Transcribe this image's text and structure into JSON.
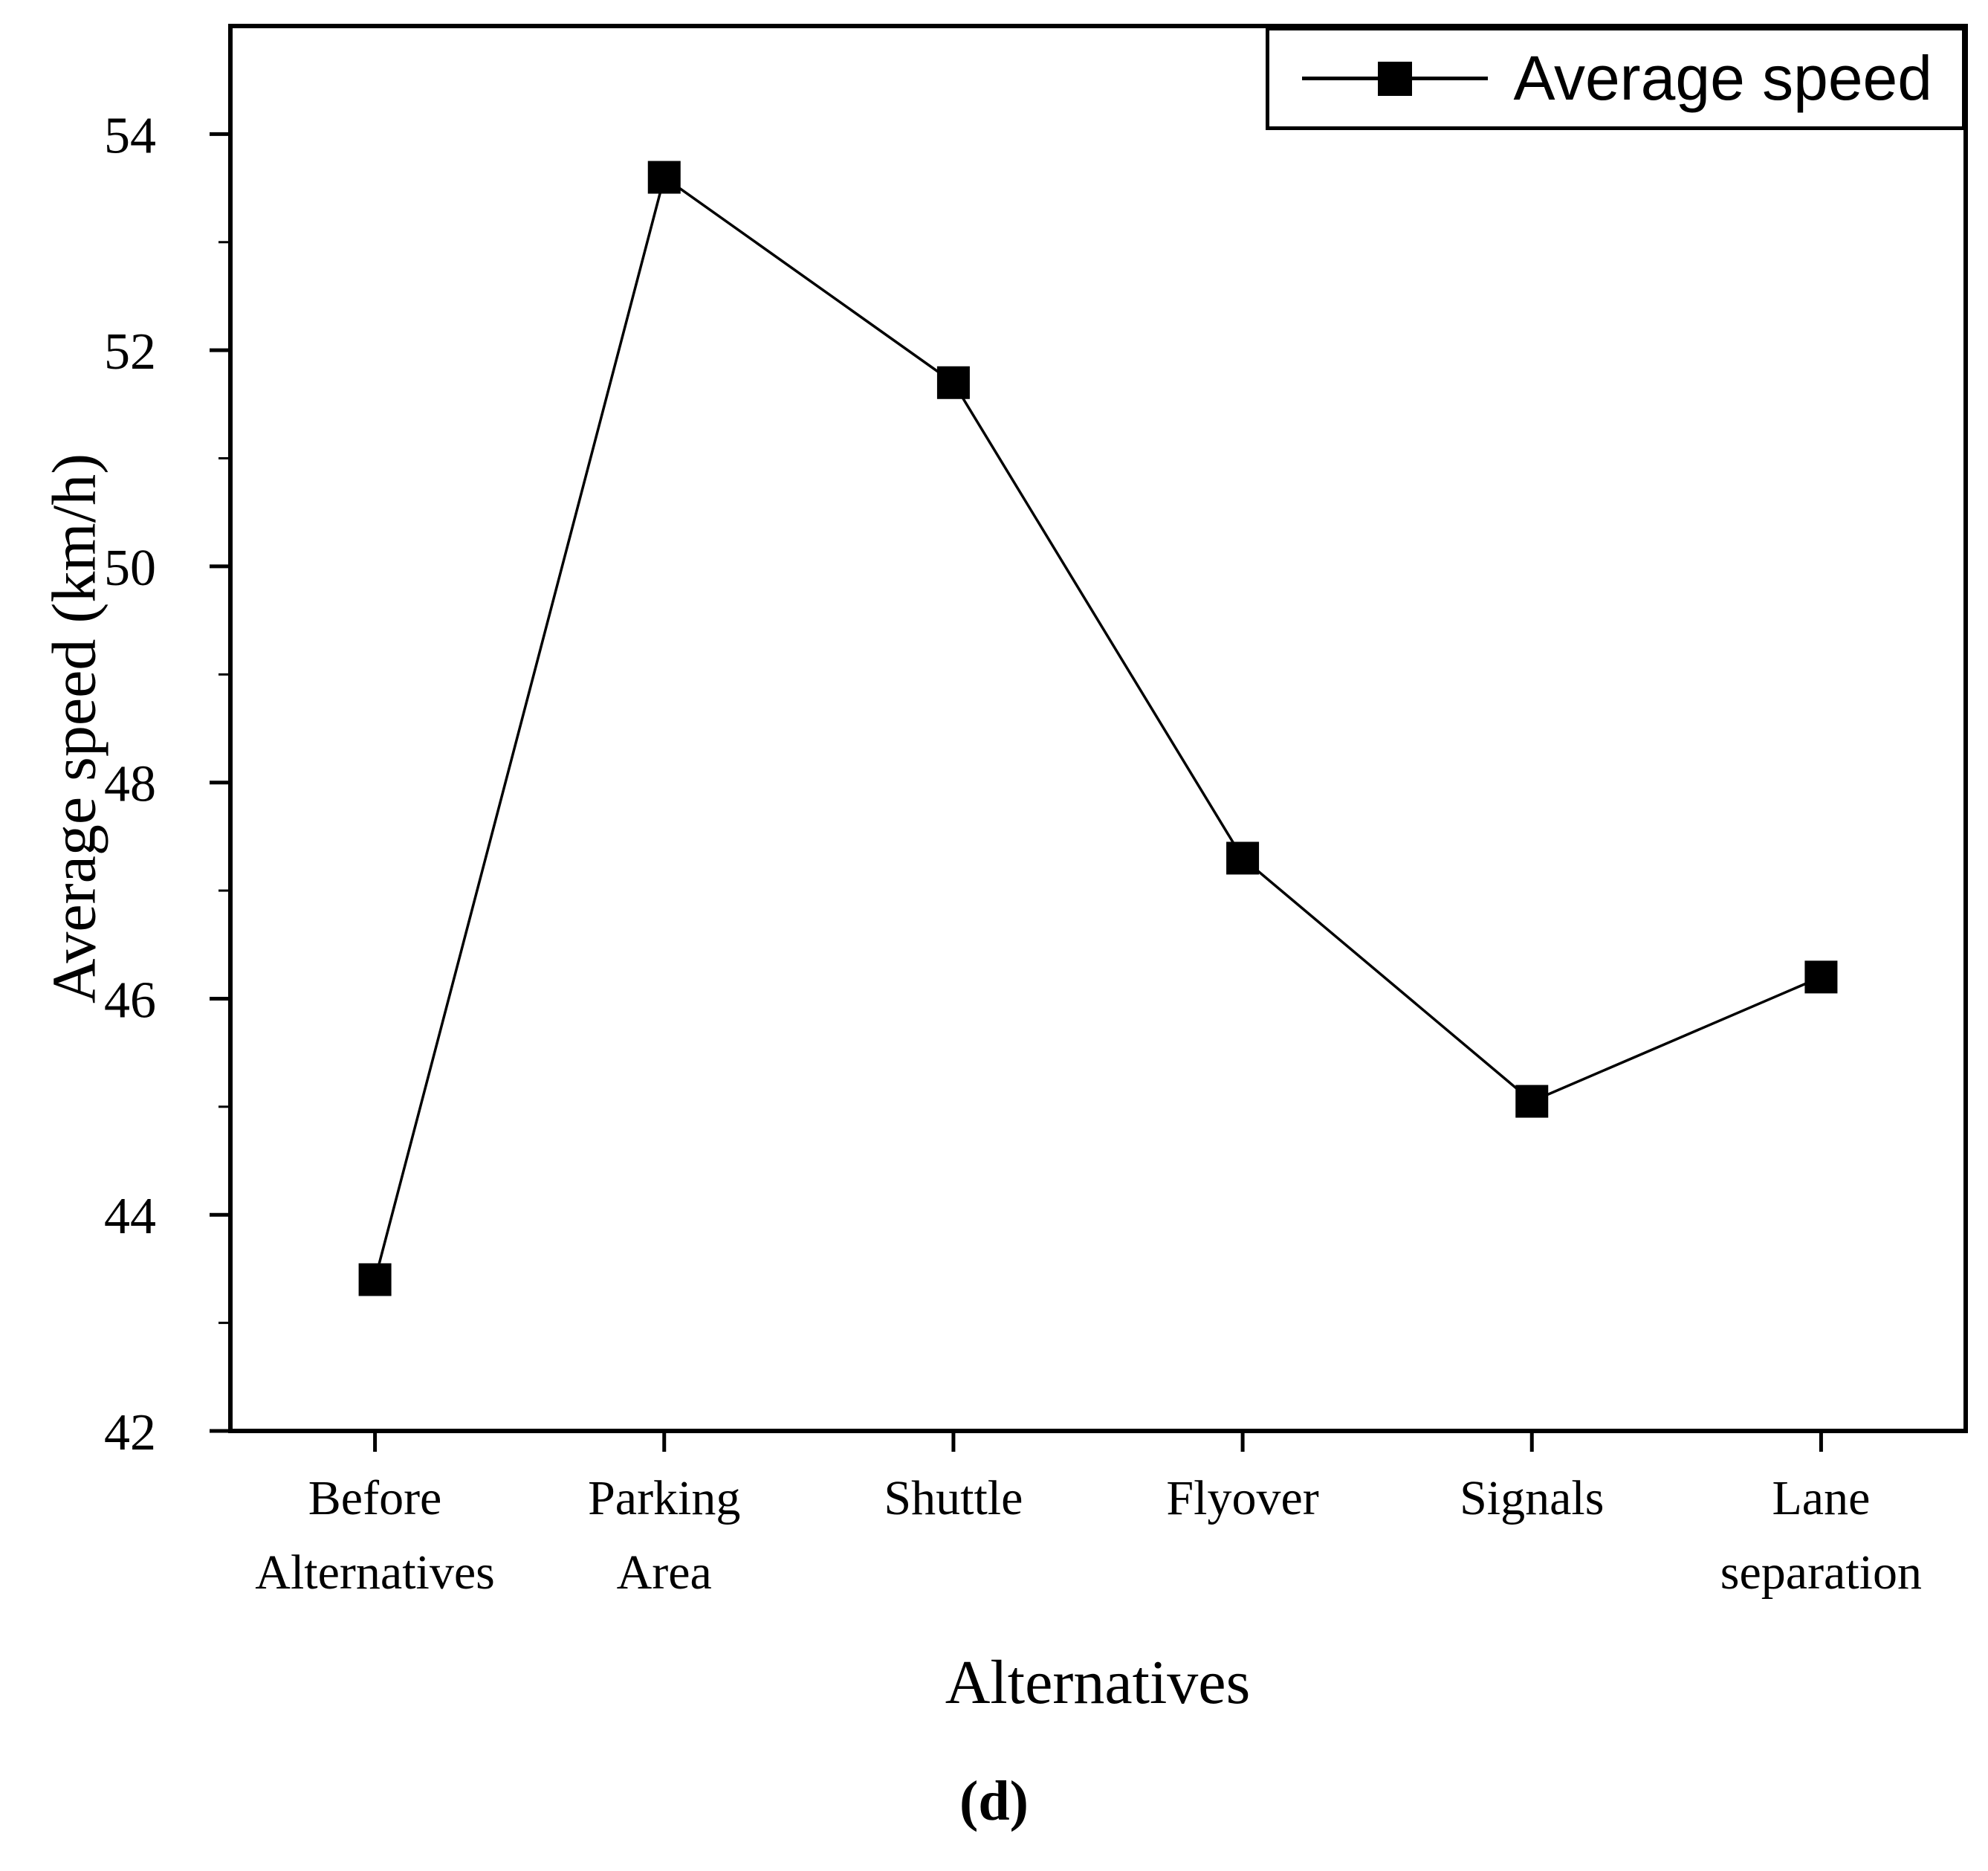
{
  "chart_data": {
    "type": "line",
    "categories": [
      "Before Alternatives",
      "Parking Area",
      "Shuttle",
      "Flyover",
      "Signals",
      "Lane separation"
    ],
    "series": [
      {
        "name": "Average speed",
        "values": [
          43.4,
          53.6,
          51.7,
          47.3,
          45.05,
          46.2
        ]
      }
    ],
    "title": "",
    "xlabel": "Alternatives",
    "ylabel": "Average speed (km/h)",
    "ylim": [
      42,
      55
    ],
    "yticks": [
      42,
      44,
      46,
      48,
      50,
      52,
      54
    ],
    "minor_tick_step": 1,
    "grid": false,
    "line_color": "#000000",
    "marker": "filled-square",
    "legend": {
      "position": "top-right",
      "entries": [
        "Average speed"
      ]
    }
  },
  "caption": {
    "text": "(d)"
  }
}
